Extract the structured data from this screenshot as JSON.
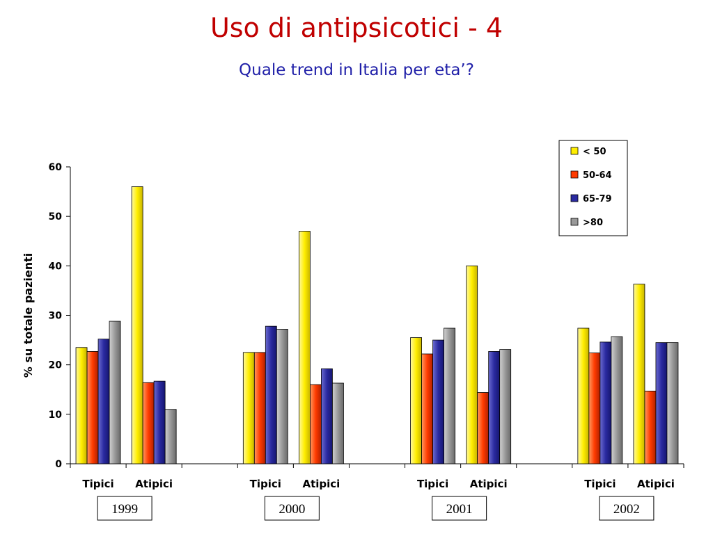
{
  "slide": {
    "title": "Uso di antipsicotici - 4",
    "subtitle": "Quale trend in Italia per eta’?"
  },
  "chart_data": {
    "type": "bar",
    "ylabel": "% su totale pazienti",
    "ylim": [
      0,
      60
    ],
    "yticks": [
      0,
      10,
      20,
      30,
      40,
      50,
      60
    ],
    "legend_position": "top-right",
    "groups": [
      {
        "year": "1999",
        "categories": [
          "Tipici",
          "Atipici"
        ]
      },
      {
        "year": "2000",
        "categories": [
          "Tipici",
          "Atipici"
        ]
      },
      {
        "year": "2001",
        "categories": [
          "Tipici",
          "Atipici"
        ]
      },
      {
        "year": "2002",
        "categories": [
          "Tipici",
          "Atipici"
        ]
      }
    ],
    "series": [
      {
        "name": "< 50",
        "color": "#ffee00",
        "values": [
          [
            23.5,
            56.0
          ],
          [
            22.5,
            47.0
          ],
          [
            25.5,
            40.0
          ],
          [
            27.4,
            36.3
          ]
        ]
      },
      {
        "name": "50-64",
        "color": "#ff3b00",
        "values": [
          [
            22.7,
            16.4
          ],
          [
            22.5,
            16.0
          ],
          [
            22.2,
            14.4
          ],
          [
            22.4,
            14.7
          ]
        ]
      },
      {
        "name": "65-79",
        "color": "#2a2aa0",
        "values": [
          [
            25.2,
            16.7
          ],
          [
            27.8,
            19.2
          ],
          [
            25.0,
            22.7
          ],
          [
            24.6,
            24.5
          ]
        ]
      },
      {
        "name": ">80",
        "color": "#999999",
        "values": [
          [
            28.8,
            11.0
          ],
          [
            27.2,
            16.3
          ],
          [
            27.4,
            23.1
          ],
          [
            25.7,
            24.5
          ]
        ]
      }
    ]
  }
}
